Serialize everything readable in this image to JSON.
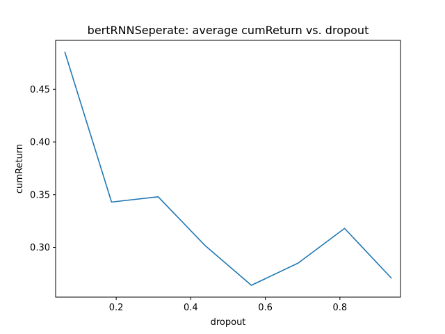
{
  "chart_data": {
    "type": "line",
    "title": "bertRNNSeperate: average cumReturn vs. dropout",
    "xlabel": "dropout",
    "ylabel": "cumReturn",
    "xlim": [
      0.0375,
      0.9625
    ],
    "ylim": [
      0.2528,
      0.4964
    ],
    "xticks": [
      0.2,
      0.4,
      0.6,
      0.8
    ],
    "xtick_labels": [
      "0.2",
      "0.4",
      "0.6",
      "0.8"
    ],
    "yticks": [
      0.3,
      0.35,
      0.4,
      0.45
    ],
    "ytick_labels": [
      "0.30",
      "0.35",
      "0.40",
      "0.45"
    ],
    "grid": false,
    "series": [
      {
        "color": "#1f77b4",
        "x": [
          0.0625,
          0.1875,
          0.3125,
          0.4375,
          0.5625,
          0.6875,
          0.8125,
          0.9375
        ],
        "y": [
          0.485,
          0.343,
          0.348,
          0.302,
          0.264,
          0.285,
          0.318,
          0.271
        ]
      }
    ]
  }
}
